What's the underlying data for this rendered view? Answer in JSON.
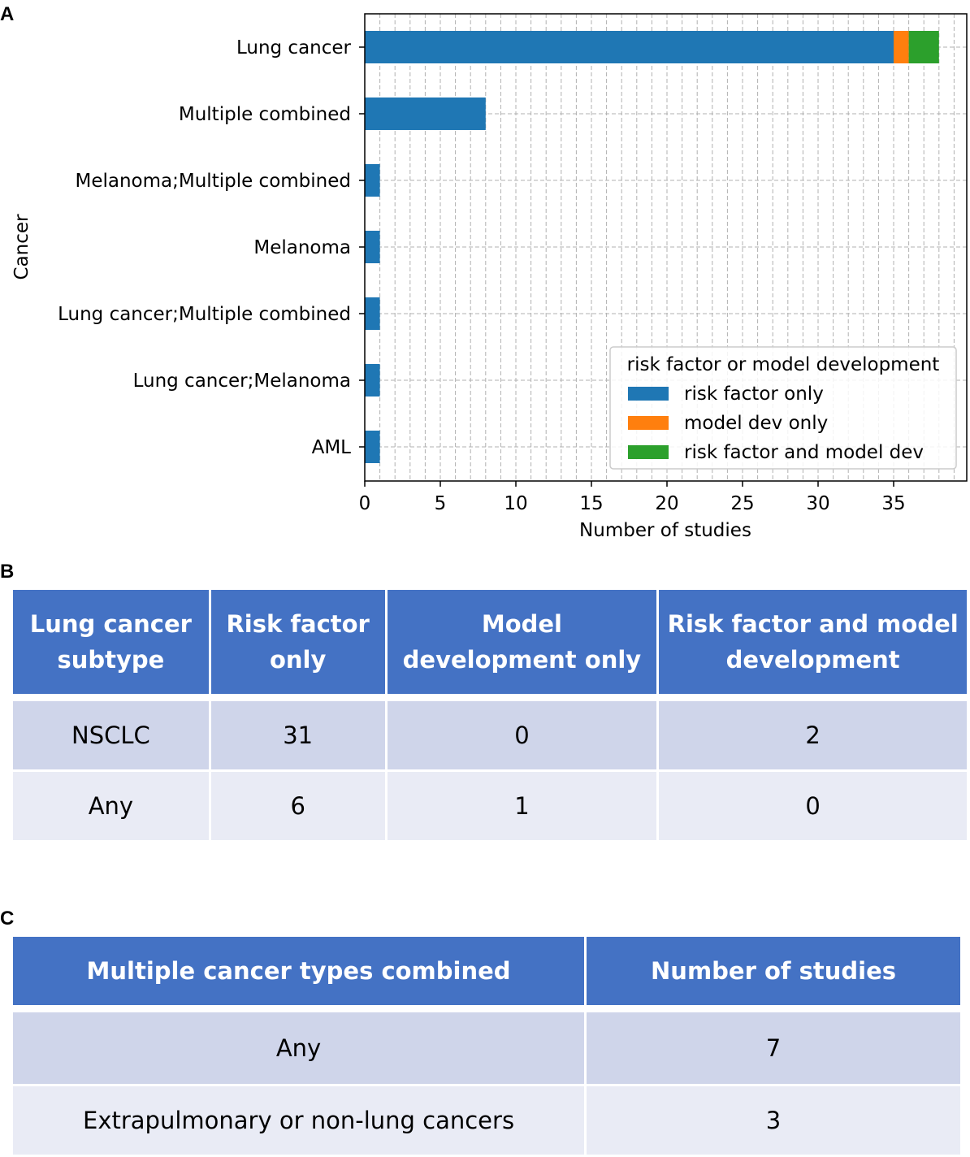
{
  "panels": {
    "a": "A",
    "b": "B",
    "c": "C"
  },
  "colors": {
    "risk_factor_only": "#1f77b4",
    "model_dev_only": "#ff7f0e",
    "both": "#2ca02c",
    "table_header": "#4472c4",
    "table_row_dark": "#cfd5ea",
    "table_row_light": "#e9ebf5"
  },
  "chart_data": {
    "type": "bar",
    "orientation": "horizontal",
    "stacked": true,
    "categories": [
      "Lung cancer",
      "Multiple combined",
      "Melanoma;Multiple combined",
      "Melanoma",
      "Lung cancer;Multiple combined",
      "Lung cancer;Melanoma",
      "AML"
    ],
    "series": [
      {
        "name": "risk factor only",
        "values": [
          35,
          8,
          1,
          1,
          1,
          1,
          1
        ]
      },
      {
        "name": "model dev only",
        "values": [
          1,
          0,
          0,
          0,
          0,
          0,
          0
        ]
      },
      {
        "name": "risk factor and model dev",
        "values": [
          2,
          0,
          0,
          0,
          0,
          0,
          0
        ]
      }
    ],
    "xlabel": "Number of studies",
    "ylabel": "Cancer",
    "xlim": [
      0,
      40
    ],
    "xticks": [
      0,
      5,
      10,
      15,
      20,
      25,
      30,
      35
    ],
    "grid": true,
    "legend": {
      "title": "risk factor or model development",
      "position": "lower-right"
    }
  },
  "table_b": {
    "headers": [
      "Lung cancer subtype",
      "Risk factor only",
      "Model development only",
      "Risk factor and model development"
    ],
    "rows": [
      [
        "NSCLC",
        "31",
        "0",
        "2"
      ],
      [
        "Any",
        "6",
        "1",
        "0"
      ]
    ]
  },
  "table_c": {
    "headers": [
      "Multiple cancer types combined",
      "Number of studies"
    ],
    "rows": [
      [
        "Any",
        "7"
      ],
      [
        "Extrapulmonary or non-lung cancers",
        "3"
      ]
    ]
  }
}
